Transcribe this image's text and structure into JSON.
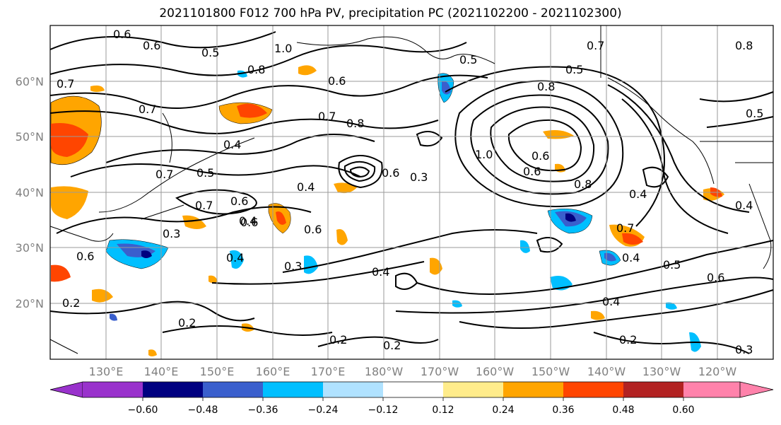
{
  "title": "2021101800 F012 700 hPa PV, precipitation PC (2021102200 - 2021102300)",
  "map": {
    "lat_labels": [
      "60°N",
      "50°N",
      "40°N",
      "30°N",
      "20°N"
    ],
    "lon_labels": [
      "130°E",
      "140°E",
      "150°E",
      "160°E",
      "170°E",
      "180°W",
      "170°W",
      "160°W",
      "150°W",
      "140°W",
      "130°W",
      "120°W"
    ],
    "contour_labels": [
      "0.6",
      "0.6",
      "0.5",
      "1.0",
      "0.7",
      "0.7",
      "0.8",
      "0.5",
      "0.7",
      "0.8",
      "0.5",
      "0.7",
      "0.8",
      "0.6",
      "0.7",
      "0.8",
      "0.4",
      "0.5",
      "0.6",
      "0.3",
      "0.4",
      "0.6",
      "1.0",
      "0.6",
      "0.6",
      "0.8",
      "0.5",
      "0.4",
      "0.7",
      "0.6",
      "0.4",
      "0.6",
      "0.3",
      "0.4",
      "0.3",
      "0.4",
      "0.6",
      "0.2",
      "0.2",
      "0.2",
      "0.4",
      "0.2",
      "0.5",
      "0.6",
      "0.4",
      "0.7",
      "0.4",
      "0.2",
      "0.3"
    ]
  },
  "colorbar": {
    "ticks": [
      "−0.60",
      "−0.48",
      "−0.36",
      "−0.24",
      "−0.12",
      "0.12",
      "0.24",
      "0.36",
      "0.48",
      "0.60"
    ],
    "colors": [
      "#9932CC",
      "#000080",
      "#3A5FCD",
      "#00BFFF",
      "#B0E2FF",
      "#FFFFFF",
      "#FFEC8B",
      "#FFA500",
      "#FF4500",
      "#B22222",
      "#FF82AB"
    ]
  }
}
